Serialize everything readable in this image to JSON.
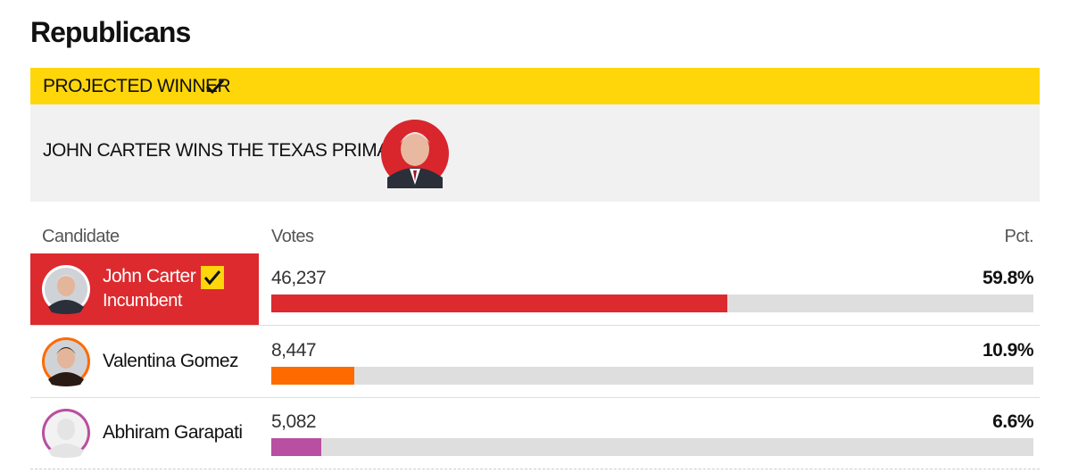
{
  "title": "Republicans",
  "banner": {
    "label": "PROJECTED WINNER",
    "headline": "JOHN CARTER WINS THE TEXAS PRIMARY"
  },
  "table": {
    "columns": [
      "Candidate",
      "Votes",
      "Pct."
    ],
    "rows": [
      {
        "name": "John Carter",
        "status": "Incumbent",
        "votes": "46,237",
        "pct": {
          "value": 59.8,
          "label": "59.8%"
        },
        "color": "#dc2a2e",
        "winner": true
      },
      {
        "name": "Valentina Gomez",
        "votes": "8,447",
        "pct": {
          "value": 10.9,
          "label": "10.9%"
        },
        "color": "#ff6a00",
        "winner": false
      },
      {
        "name": "Abhiram Garapati",
        "votes": "5,082",
        "pct": {
          "value": 6.6,
          "label": "6.6%"
        },
        "color": "#b84fa0",
        "winner": false
      }
    ]
  }
}
